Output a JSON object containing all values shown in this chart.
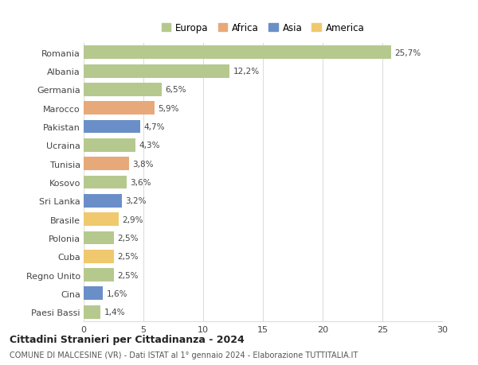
{
  "categories": [
    "Paesi Bassi",
    "Cina",
    "Regno Unito",
    "Cuba",
    "Polonia",
    "Brasile",
    "Sri Lanka",
    "Kosovo",
    "Tunisia",
    "Ucraina",
    "Pakistan",
    "Marocco",
    "Germania",
    "Albania",
    "Romania"
  ],
  "values": [
    1.4,
    1.6,
    2.5,
    2.5,
    2.5,
    2.9,
    3.2,
    3.6,
    3.8,
    4.3,
    4.7,
    5.9,
    6.5,
    12.2,
    25.7
  ],
  "labels": [
    "1,4%",
    "1,6%",
    "2,5%",
    "2,5%",
    "2,5%",
    "2,9%",
    "3,2%",
    "3,6%",
    "3,8%",
    "4,3%",
    "4,7%",
    "5,9%",
    "6,5%",
    "12,2%",
    "25,7%"
  ],
  "colors": [
    "#b5c98e",
    "#6a8fc8",
    "#b5c98e",
    "#f0c96e",
    "#b5c98e",
    "#f0c96e",
    "#6a8fc8",
    "#b5c98e",
    "#e8a97a",
    "#b5c98e",
    "#6a8fc8",
    "#e8a97a",
    "#b5c98e",
    "#b5c98e",
    "#b5c98e"
  ],
  "legend_labels": [
    "Europa",
    "Africa",
    "Asia",
    "America"
  ],
  "legend_colors": [
    "#b5c98e",
    "#e8a97a",
    "#6a8fc8",
    "#f0c96e"
  ],
  "xlim": [
    0,
    30
  ],
  "xticks": [
    0,
    5,
    10,
    15,
    20,
    25,
    30
  ],
  "title": "Cittadini Stranieri per Cittadinanza - 2024",
  "subtitle": "COMUNE DI MALCESINE (VR) - Dati ISTAT al 1° gennaio 2024 - Elaborazione TUTTITALIA.IT",
  "background_color": "#ffffff",
  "grid_color": "#dddddd",
  "bar_height": 0.72
}
